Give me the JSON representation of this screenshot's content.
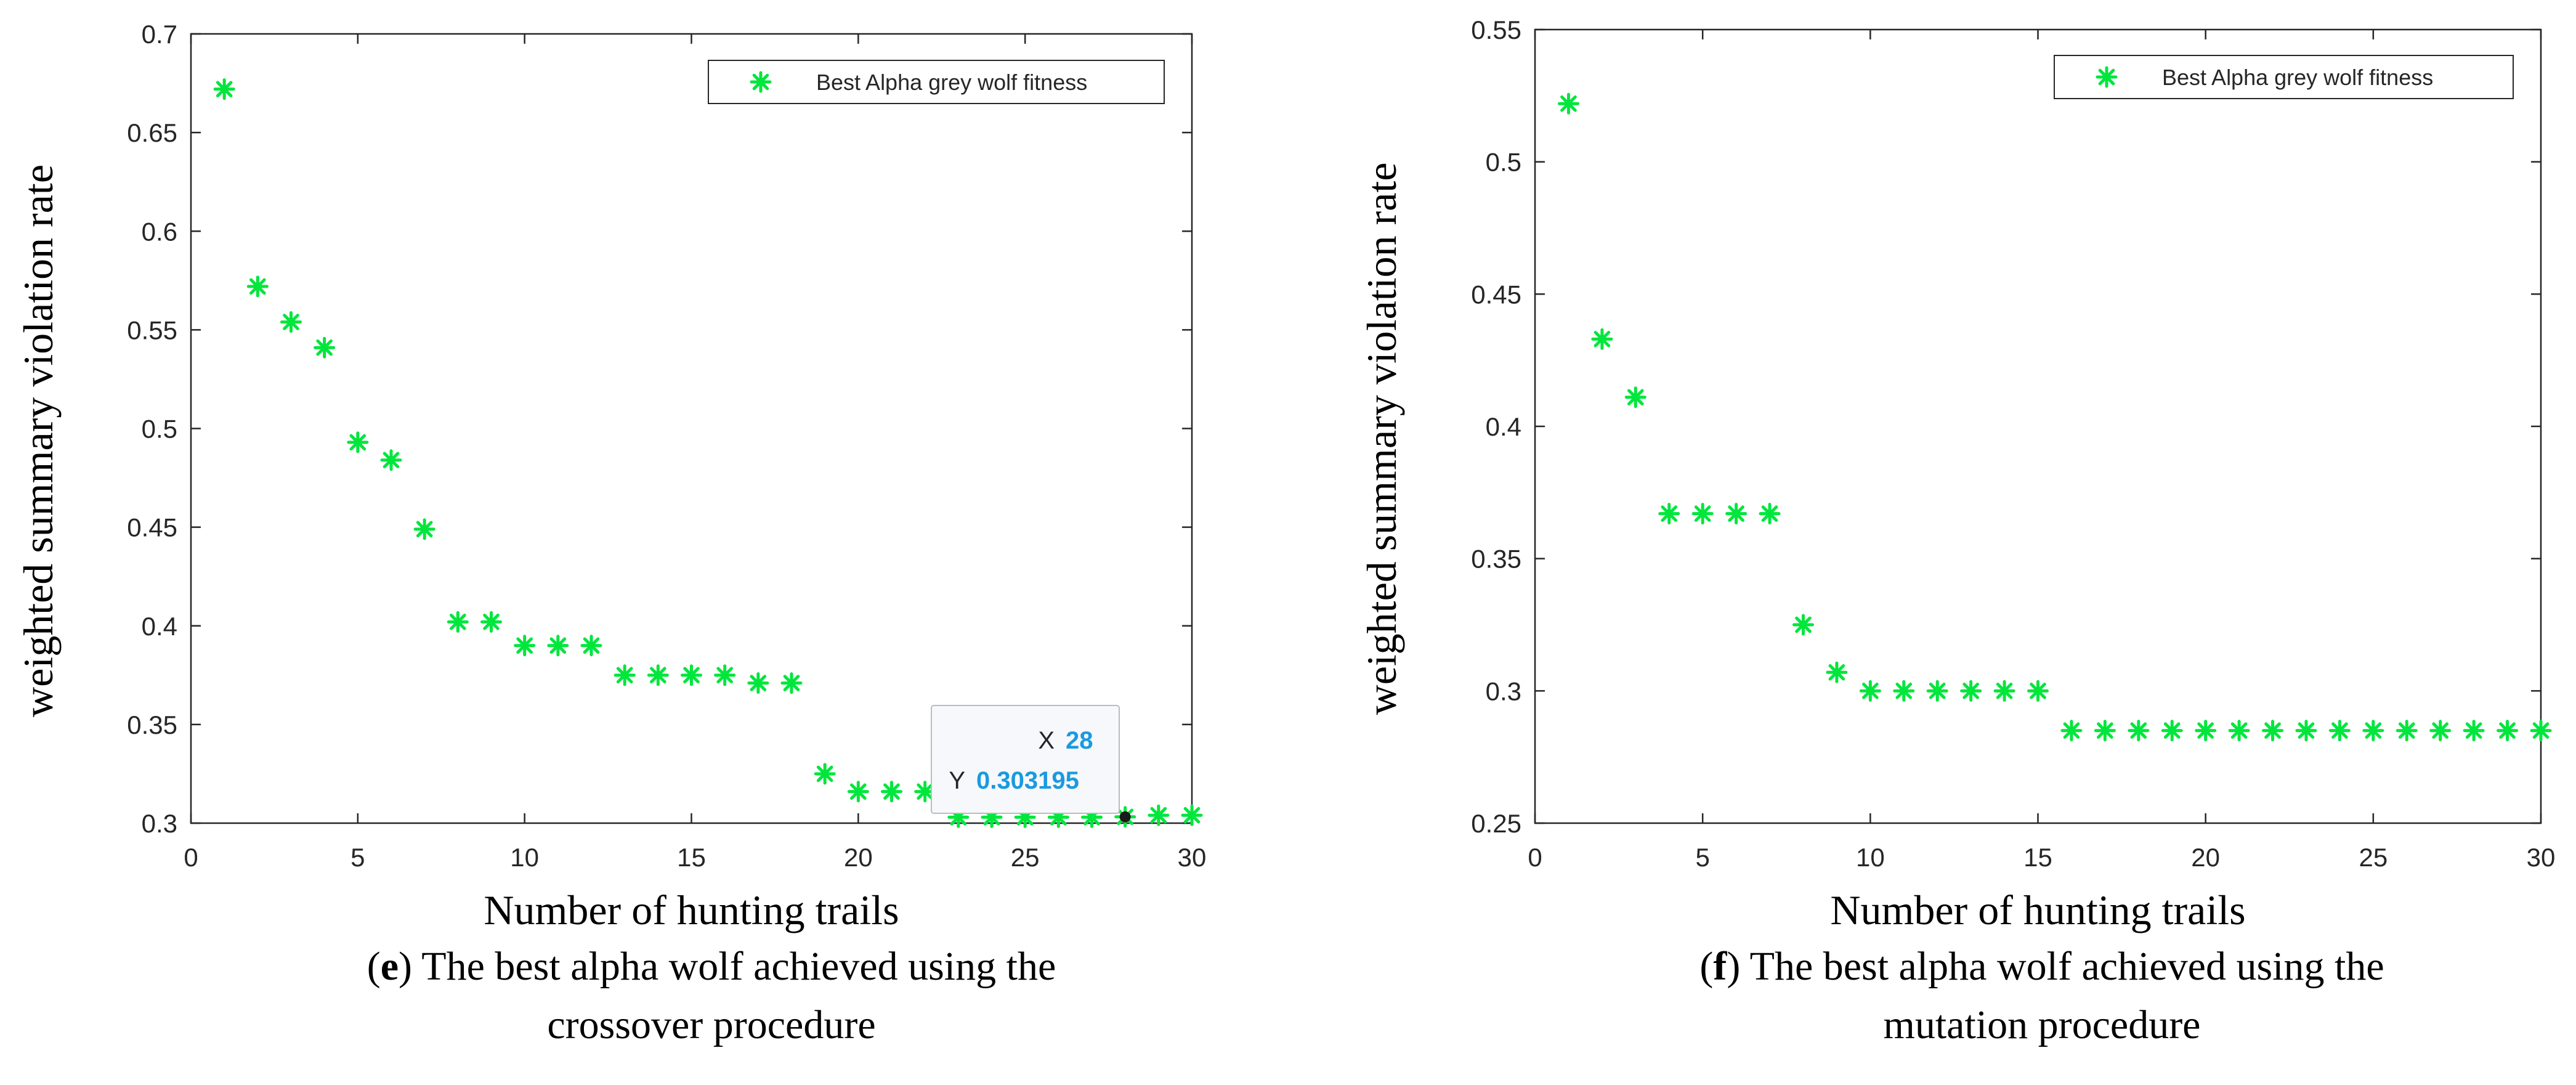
{
  "chart_data": [
    {
      "type": "scatter",
      "panel_id": "e",
      "caption_lines": [
        "The best alpha wolf achieved using the",
        "crossover procedure"
      ],
      "xlabel": "Number of hunting trails",
      "ylabel": "weighted summary violation rate",
      "xlim": [
        0,
        30
      ],
      "ylim": [
        0.3,
        0.7
      ],
      "xticks": [
        0,
        5,
        10,
        15,
        20,
        25,
        30
      ],
      "yticks": [
        0.3,
        0.35,
        0.4,
        0.45,
        0.5,
        0.55,
        0.6,
        0.65,
        0.7
      ],
      "ytick_labels": [
        "0.3",
        "0.35",
        "0.4",
        "0.45",
        "0.5",
        "0.55",
        "0.6",
        "0.65",
        "0.7"
      ],
      "grid": false,
      "legend": {
        "label": "Best Alpha grey wolf fitness",
        "location": "top-right"
      },
      "series": [
        {
          "name": "Best Alpha grey wolf fitness",
          "marker": "asterisk",
          "color": "#00e63c",
          "x": [
            1,
            2,
            3,
            4,
            5,
            6,
            7,
            8,
            9,
            10,
            11,
            12,
            13,
            14,
            15,
            16,
            17,
            18,
            19,
            20,
            21,
            22,
            23,
            24,
            25,
            26,
            27,
            28,
            29,
            30
          ],
          "y": [
            0.672,
            0.572,
            0.554,
            0.541,
            0.493,
            0.484,
            0.449,
            0.402,
            0.402,
            0.39,
            0.39,
            0.39,
            0.375,
            0.375,
            0.375,
            0.375,
            0.371,
            0.371,
            0.325,
            0.316,
            0.316,
            0.316,
            0.303,
            0.303,
            0.303,
            0.303,
            0.303,
            0.303195,
            0.304,
            0.304
          ]
        }
      ],
      "datatip": {
        "x_label": "X",
        "x_value": "28",
        "y_label": "Y",
        "y_value": "0.303195",
        "point_x": 28,
        "point_y": 0.303195
      }
    },
    {
      "type": "scatter",
      "panel_id": "f",
      "caption_lines": [
        "The best alpha wolf achieved using the",
        "mutation procedure"
      ],
      "xlabel": "Number of hunting trails",
      "ylabel": "weighted summary violation rate",
      "xlim": [
        0,
        30
      ],
      "ylim": [
        0.25,
        0.55
      ],
      "xticks": [
        0,
        5,
        10,
        15,
        20,
        25,
        30
      ],
      "yticks": [
        0.25,
        0.3,
        0.35,
        0.4,
        0.45,
        0.5,
        0.55
      ],
      "ytick_labels": [
        "0.25",
        "0.3",
        "0.35",
        "0.4",
        "0.45",
        "0.5",
        "0.55"
      ],
      "grid": false,
      "legend": {
        "label": "Best Alpha grey wolf fitness",
        "location": "top-right"
      },
      "series": [
        {
          "name": "Best Alpha grey wolf fitness",
          "marker": "asterisk",
          "color": "#00e63c",
          "x": [
            1,
            2,
            3,
            4,
            5,
            6,
            7,
            8,
            9,
            10,
            11,
            12,
            13,
            14,
            15,
            16,
            17,
            18,
            19,
            20,
            21,
            22,
            23,
            24,
            25,
            26,
            27,
            28,
            29,
            30
          ],
          "y": [
            0.522,
            0.433,
            0.411,
            0.367,
            0.367,
            0.367,
            0.367,
            0.325,
            0.307,
            0.3,
            0.3,
            0.3,
            0.3,
            0.3,
            0.3,
            0.285,
            0.285,
            0.285,
            0.285,
            0.285,
            0.285,
            0.285,
            0.285,
            0.285,
            0.285,
            0.285,
            0.285,
            0.285,
            0.285,
            0.285
          ]
        }
      ]
    }
  ]
}
